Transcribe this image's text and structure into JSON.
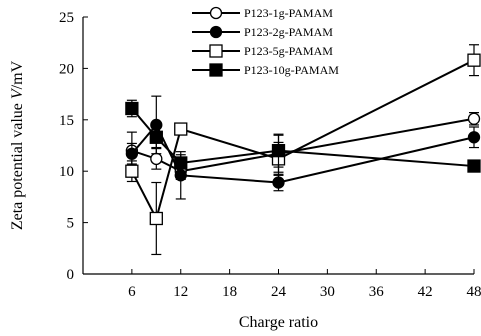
{
  "chart_data": {
    "type": "line",
    "title": "",
    "xlabel": "Charge ratio",
    "ylabel": "Zeta potential value V/mV",
    "xlim": [
      0,
      48
    ],
    "ylim": [
      0,
      25
    ],
    "xticks": [
      6,
      12,
      18,
      24,
      30,
      36,
      42,
      48
    ],
    "yticks": [
      0,
      5,
      10,
      15,
      20,
      25
    ],
    "grid": false,
    "legend_position": "top-center",
    "series": [
      {
        "name": "P123-1g-PAMAM",
        "marker": "circle-open",
        "points": [
          {
            "x": 6,
            "y": 12.0,
            "err": 1.8
          },
          {
            "x": 9,
            "y": 11.2,
            "err": 1.0
          },
          {
            "x": 12,
            "y": 10.0,
            "err": 0.8
          },
          {
            "x": 24,
            "y": 11.7,
            "err": 1.8
          },
          {
            "x": 48,
            "y": 15.1,
            "err": 0.6
          }
        ]
      },
      {
        "name": "P123-2g-PAMAM",
        "marker": "circle-filled",
        "points": [
          {
            "x": 6,
            "y": 11.7,
            "err": 1.0
          },
          {
            "x": 9,
            "y": 14.5,
            "err": 2.8
          },
          {
            "x": 12,
            "y": 9.6,
            "err": 2.3
          },
          {
            "x": 24,
            "y": 8.9,
            "err": 0.8
          },
          {
            "x": 48,
            "y": 13.3,
            "err": 1.0
          }
        ]
      },
      {
        "name": "P123-5g-PAMAM",
        "marker": "square-open",
        "points": [
          {
            "x": 6,
            "y": 10.0,
            "err": 1.0
          },
          {
            "x": 9,
            "y": 5.4,
            "err": 3.5
          },
          {
            "x": 12,
            "y": 14.1,
            "err": 0.5
          },
          {
            "x": 24,
            "y": 11.2,
            "err": 1.6
          },
          {
            "x": 48,
            "y": 20.8,
            "err": 1.5
          }
        ]
      },
      {
        "name": "P123-10g-PAMAM",
        "marker": "square-filled",
        "points": [
          {
            "x": 6,
            "y": 16.1,
            "err": 0.8
          },
          {
            "x": 9,
            "y": 13.3,
            "err": 1.0
          },
          {
            "x": 12,
            "y": 10.8,
            "err": 0.8
          },
          {
            "x": 24,
            "y": 12.0,
            "err": 1.6
          },
          {
            "x": 48,
            "y": 10.5,
            "err": 0.4
          }
        ]
      }
    ]
  }
}
